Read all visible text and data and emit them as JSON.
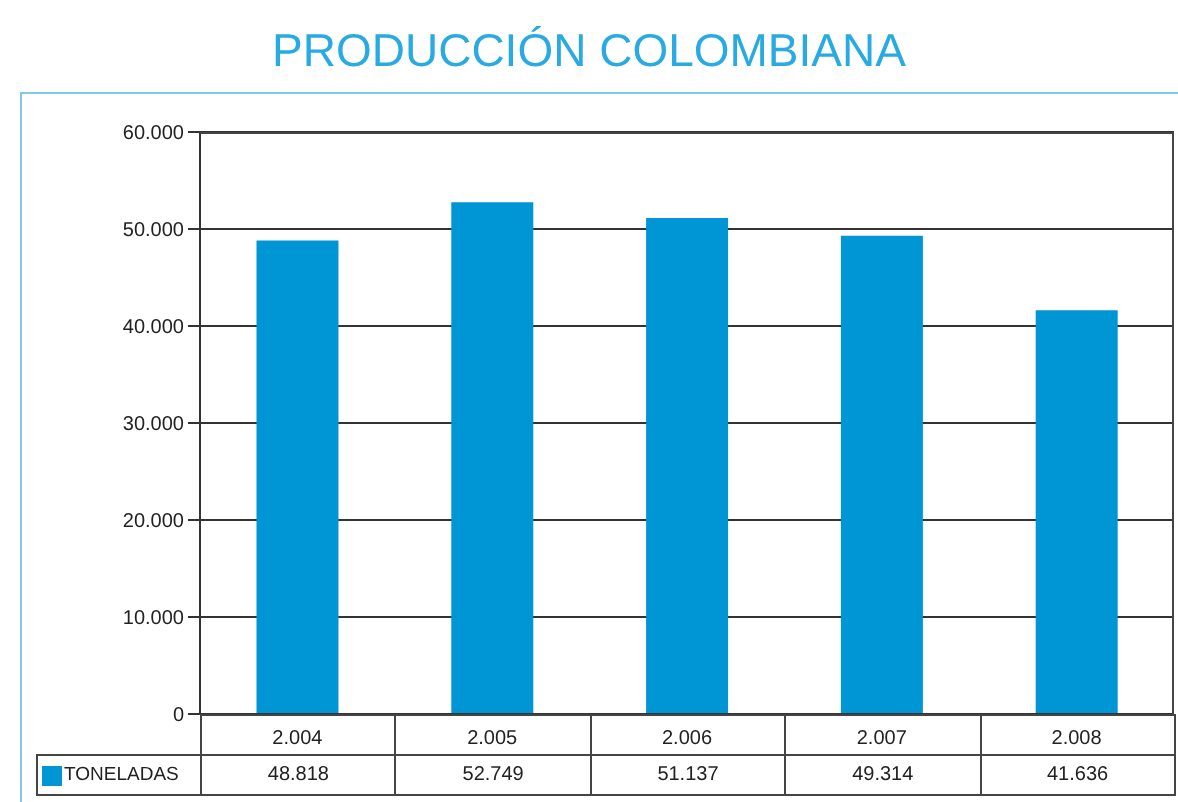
{
  "chart_data": {
    "type": "bar",
    "title": "PRODUCCIÓN COLOMBIANA",
    "categories": [
      "2.004",
      "2.005",
      "2.006",
      "2.007",
      "2.008"
    ],
    "series": [
      {
        "name": "TONELADAS",
        "color": "#0096d6",
        "values": [
          48818,
          52749,
          51137,
          49314,
          41636
        ],
        "value_labels": [
          "48.818",
          "52.749",
          "51.137",
          "49.314",
          "41.636"
        ]
      }
    ],
    "ylim": [
      0,
      60000
    ],
    "yticks": [
      {
        "value": 0,
        "label": "0"
      },
      {
        "value": 10000,
        "label": "10.000"
      },
      {
        "value": 20000,
        "label": "20.000"
      },
      {
        "value": 30000,
        "label": "30.000"
      },
      {
        "value": 40000,
        "label": "40.000"
      },
      {
        "value": 50000,
        "label": "50.000"
      },
      {
        "value": 60000,
        "label": "60.000"
      }
    ],
    "grid": "y",
    "legend": "bottom",
    "data_labels": true
  }
}
